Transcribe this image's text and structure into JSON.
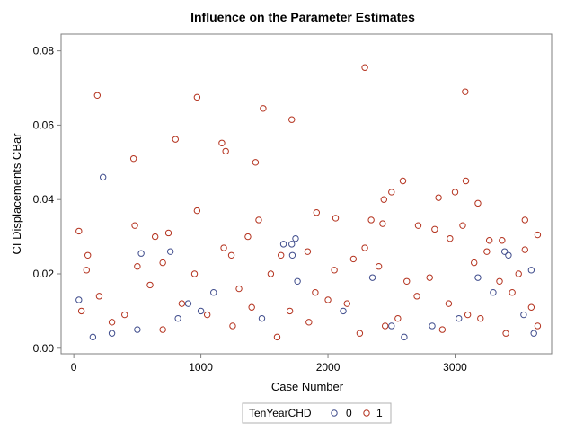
{
  "chart_data": {
    "type": "scatter",
    "title": "Influence on the Parameter Estimates",
    "xlabel": "Case Number",
    "ylabel": "CI Displacements CBar",
    "xlim": [
      -100,
      3760
    ],
    "ylim": [
      -0.0015,
      0.0845
    ],
    "xticks": [
      0,
      1000,
      2000,
      3000
    ],
    "yticks": [
      0.0,
      0.02,
      0.04,
      0.06,
      0.08
    ],
    "xtick_labels": [
      "0",
      "1000",
      "2000",
      "3000"
    ],
    "ytick_labels": [
      "0.00",
      "0.02",
      "0.04",
      "0.06",
      "0.08"
    ],
    "grid": false,
    "legend": {
      "title": "TenYearCHD",
      "position": "bottom-center"
    },
    "series": [
      {
        "name": "0",
        "color": "#3f4c8c",
        "marker": "open-circle",
        "points": [
          [
            230,
            0.046
          ],
          [
            1715,
            0.028
          ],
          [
            1650,
            0.028
          ],
          [
            1720,
            0.025
          ],
          [
            1745,
            0.0295
          ],
          [
            530,
            0.0255
          ],
          [
            760,
            0.026
          ],
          [
            1760,
            0.018
          ],
          [
            3600,
            0.021
          ],
          [
            3390,
            0.026
          ],
          [
            3420,
            0.025
          ],
          [
            820,
            0.008
          ],
          [
            500,
            0.005
          ],
          [
            150,
            0.003
          ],
          [
            300,
            0.004
          ],
          [
            1100,
            0.015
          ],
          [
            2350,
            0.019
          ],
          [
            3180,
            0.019
          ],
          [
            2120,
            0.01
          ],
          [
            3300,
            0.015
          ],
          [
            3030,
            0.008
          ],
          [
            2600,
            0.003
          ],
          [
            2820,
            0.006
          ],
          [
            1480,
            0.008
          ],
          [
            900,
            0.012
          ],
          [
            3540,
            0.009
          ],
          [
            3620,
            0.004
          ],
          [
            40,
            0.013
          ],
          [
            1000,
            0.01
          ],
          [
            2500,
            0.006
          ]
        ]
      },
      {
        "name": "1",
        "color": "#b4321e",
        "marker": "open-circle",
        "points": [
          [
            185,
            0.068
          ],
          [
            970,
            0.0675
          ],
          [
            1490,
            0.0645
          ],
          [
            1715,
            0.0615
          ],
          [
            2290,
            0.0755
          ],
          [
            3080,
            0.069
          ],
          [
            800,
            0.0562
          ],
          [
            1165,
            0.0552
          ],
          [
            1195,
            0.053
          ],
          [
            470,
            0.051
          ],
          [
            1430,
            0.05
          ],
          [
            3085,
            0.045
          ],
          [
            2590,
            0.045
          ],
          [
            2500,
            0.042
          ],
          [
            3000,
            0.042
          ],
          [
            2870,
            0.0405
          ],
          [
            2440,
            0.04
          ],
          [
            3180,
            0.039
          ],
          [
            970,
            0.037
          ],
          [
            1910,
            0.0365
          ],
          [
            2840,
            0.032
          ],
          [
            2710,
            0.033
          ],
          [
            1455,
            0.0345
          ],
          [
            480,
            0.033
          ],
          [
            2060,
            0.035
          ],
          [
            2340,
            0.0345
          ],
          [
            2430,
            0.0335
          ],
          [
            3550,
            0.0345
          ],
          [
            3650,
            0.0305
          ],
          [
            40,
            0.0315
          ],
          [
            640,
            0.03
          ],
          [
            745,
            0.031
          ],
          [
            1370,
            0.03
          ],
          [
            2960,
            0.0295
          ],
          [
            3370,
            0.029
          ],
          [
            3550,
            0.0265
          ],
          [
            3270,
            0.029
          ],
          [
            2290,
            0.027
          ],
          [
            1180,
            0.027
          ],
          [
            1840,
            0.026
          ],
          [
            3060,
            0.033
          ],
          [
            110,
            0.025
          ],
          [
            3250,
            0.026
          ],
          [
            1630,
            0.025
          ],
          [
            1240,
            0.025
          ],
          [
            3150,
            0.023
          ],
          [
            700,
            0.023
          ],
          [
            500,
            0.022
          ],
          [
            2200,
            0.024
          ],
          [
            2620,
            0.018
          ],
          [
            100,
            0.021
          ],
          [
            950,
            0.02
          ],
          [
            1550,
            0.02
          ],
          [
            2050,
            0.021
          ],
          [
            2400,
            0.022
          ],
          [
            2800,
            0.019
          ],
          [
            3350,
            0.018
          ],
          [
            3500,
            0.02
          ],
          [
            600,
            0.017
          ],
          [
            1300,
            0.016
          ],
          [
            1900,
            0.015
          ],
          [
            2700,
            0.014
          ],
          [
            3450,
            0.015
          ],
          [
            200,
            0.014
          ],
          [
            850,
            0.012
          ],
          [
            1400,
            0.011
          ],
          [
            2000,
            0.013
          ],
          [
            2150,
            0.012
          ],
          [
            2950,
            0.012
          ],
          [
            3600,
            0.011
          ],
          [
            60,
            0.01
          ],
          [
            400,
            0.009
          ],
          [
            1050,
            0.009
          ],
          [
            1700,
            0.01
          ],
          [
            2550,
            0.008
          ],
          [
            3100,
            0.009
          ],
          [
            3200,
            0.008
          ],
          [
            300,
            0.007
          ],
          [
            1250,
            0.006
          ],
          [
            1850,
            0.007
          ],
          [
            2450,
            0.006
          ],
          [
            3650,
            0.006
          ],
          [
            700,
            0.005
          ],
          [
            2250,
            0.004
          ],
          [
            3400,
            0.004
          ],
          [
            1600,
            0.003
          ],
          [
            2900,
            0.005
          ]
        ]
      }
    ]
  }
}
